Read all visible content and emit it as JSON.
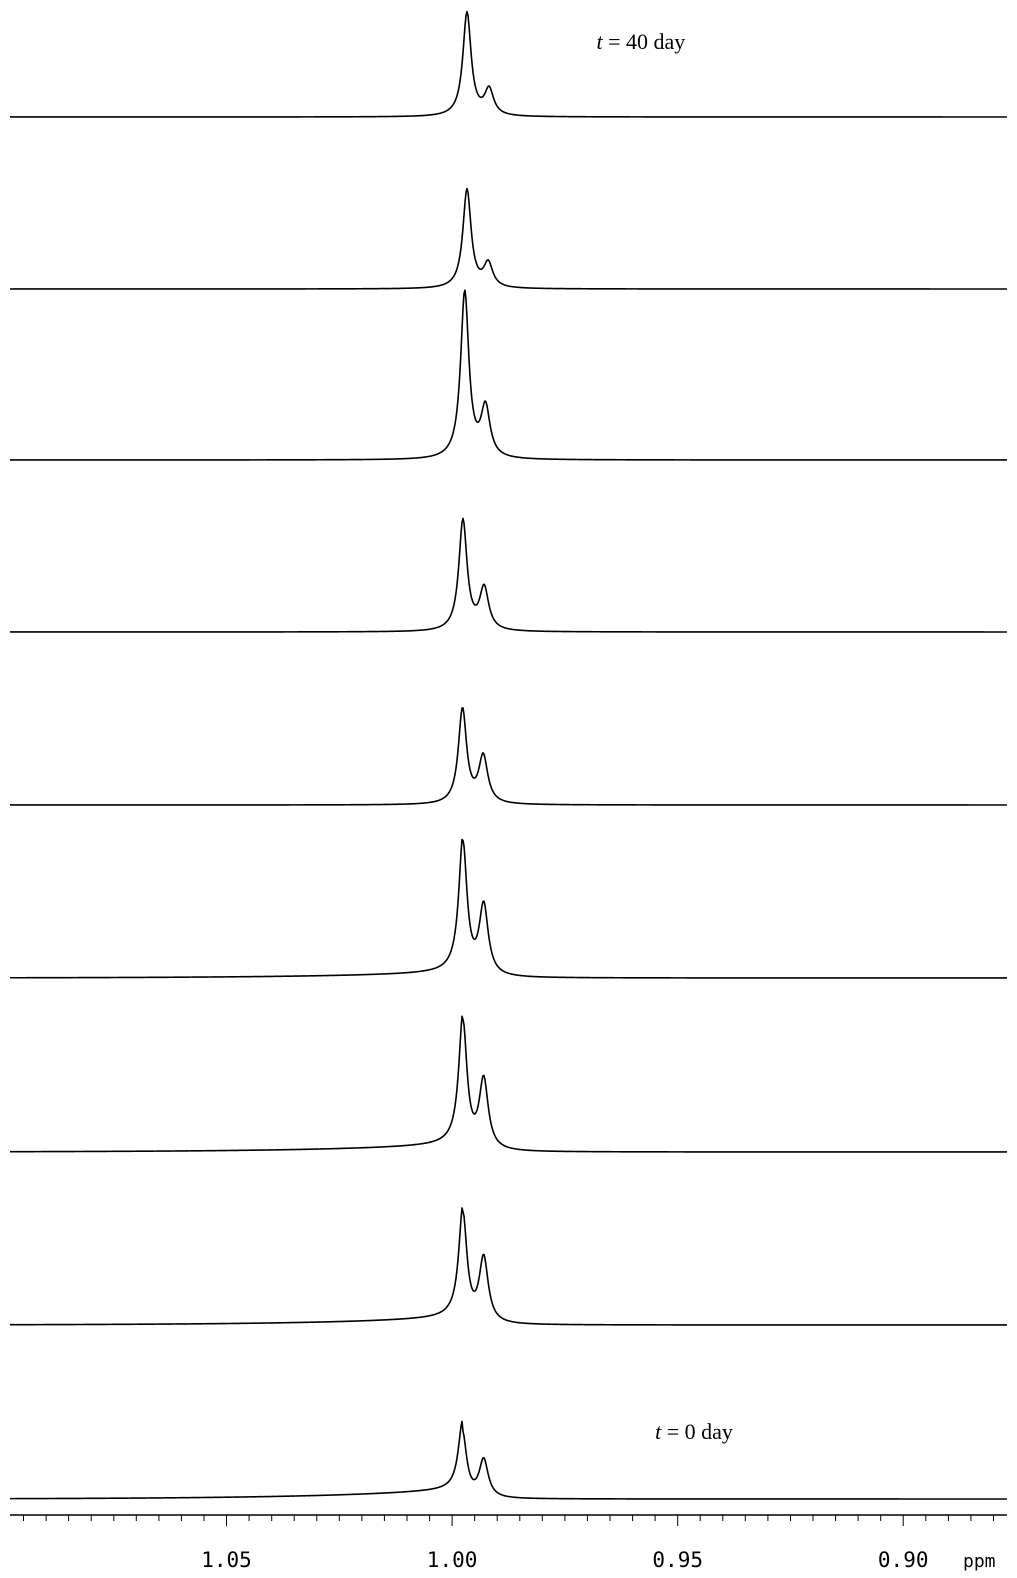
{
  "chart_data": {
    "type": "line",
    "x_axis": {
      "unit_label": "ppm",
      "range": [
        1.098,
        0.877
      ],
      "reversed": true,
      "major_ticks": [
        1.05,
        1.0,
        0.95,
        0.9
      ],
      "major_tick_labels": [
        "1.05",
        "1.00",
        "0.95",
        "0.90"
      ],
      "minor_tick_step": 0.005
    },
    "grid": false,
    "legend": "none",
    "annotations": [
      {
        "var": "t",
        "text": " = 40 day",
        "attached_trace": 0,
        "ppm": 0.968
      },
      {
        "var": "t",
        "text": " = 0 day",
        "attached_trace": 8,
        "ppm": 0.955
      }
    ],
    "series": [
      {
        "peak1_ppm": 0.9967,
        "peak1_height": 104,
        "peak2_ppm": 0.9918,
        "peak2_height": 26,
        "left_tilt": 0
      },
      {
        "peak1_ppm": 0.9967,
        "peak1_height": 99,
        "peak2_ppm": 0.992,
        "peak2_height": 24,
        "left_tilt": 0
      },
      {
        "peak1_ppm": 0.9972,
        "peak1_height": 167,
        "peak2_ppm": 0.9926,
        "peak2_height": 50,
        "left_tilt": 0
      },
      {
        "peak1_ppm": 0.9976,
        "peak1_height": 111,
        "peak2_ppm": 0.9929,
        "peak2_height": 42,
        "left_tilt": 0
      },
      {
        "peak1_ppm": 0.9977,
        "peak1_height": 95,
        "peak2_ppm": 0.9931,
        "peak2_height": 47,
        "left_tilt": 0
      },
      {
        "peak1_ppm": 0.9976,
        "peak1_height": 133,
        "peak2_ppm": 0.993,
        "peak2_height": 70,
        "left_tilt": 6
      },
      {
        "peak1_ppm": 0.9976,
        "peak1_height": 128,
        "peak2_ppm": 0.993,
        "peak2_height": 70,
        "left_tilt": 8
      },
      {
        "peak1_ppm": 0.9976,
        "peak1_height": 109,
        "peak2_ppm": 0.993,
        "peak2_height": 65,
        "left_tilt": 8
      },
      {
        "peak1_ppm": 0.9977,
        "peak1_height": 66,
        "peak2_ppm": 0.993,
        "peak2_height": 38,
        "left_tilt": 10
      }
    ]
  }
}
